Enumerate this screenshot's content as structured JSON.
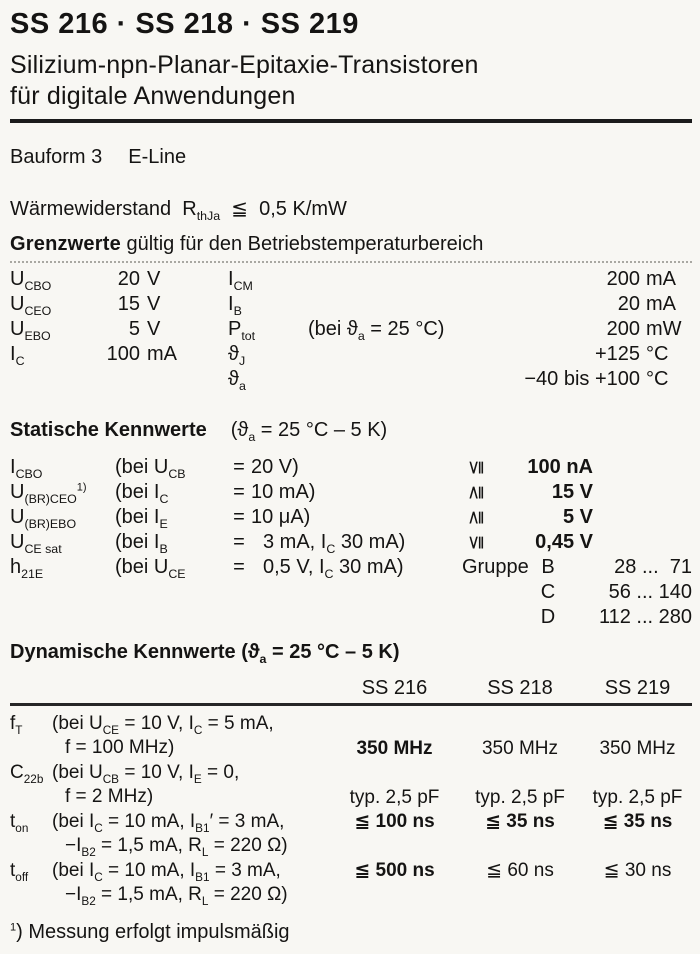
{
  "colors": {
    "paper": "#f8f7f3",
    "ink": "#151413"
  },
  "header": {
    "title": "SS 216 · SS 218 · SS 219",
    "subtitle_line1": "Silizium-npn-Planar-Epitaxie-Transistoren",
    "subtitle_line2": "für digitale Anwendungen"
  },
  "bauform": {
    "label": "Bauform 3",
    "value": "E-Line"
  },
  "thermal": {
    "rich": [
      {
        "t": "Wärmewiderstand  R"
      },
      {
        "sub": "thJa"
      },
      {
        "t": "  ≦  0,5 K/mW"
      }
    ]
  },
  "grenzwerte": {
    "heading_bold": "Grenzwerte",
    "heading_rest": " gültig für den Betriebstemperaturbereich",
    "rows": [
      {
        "sym": [
          {
            "t": "U"
          },
          {
            "sub": "CBO"
          }
        ],
        "num": "20",
        "unit": "V",
        "sym2": [
          {
            "t": "I"
          },
          {
            "sub": "CM"
          }
        ],
        "cond": [],
        "num2": "200",
        "unit2": "mA"
      },
      {
        "sym": [
          {
            "t": "U"
          },
          {
            "sub": "CEO"
          }
        ],
        "num": "15",
        "unit": "V",
        "sym2": [
          {
            "t": "I"
          },
          {
            "sub": "B"
          }
        ],
        "cond": [],
        "num2": "20",
        "unit2": "mA"
      },
      {
        "sym": [
          {
            "t": "U"
          },
          {
            "sub": "EBO"
          }
        ],
        "num": "5",
        "unit": "V",
        "sym2": [
          {
            "t": "P"
          },
          {
            "sub": "tot"
          }
        ],
        "cond": [
          {
            "t": "(bei ϑ"
          },
          {
            "sub": "a"
          },
          {
            "t": " = 25 °C)"
          }
        ],
        "num2": "200",
        "unit2": "mW"
      },
      {
        "sym": [
          {
            "t": "I"
          },
          {
            "sub": "C"
          }
        ],
        "num": "100",
        "unit": "mA",
        "sym2": [
          {
            "t": "ϑ"
          },
          {
            "sub": "J"
          }
        ],
        "cond": [],
        "num2": "+125",
        "unit2": "°C"
      },
      {
        "sym": [],
        "num": "",
        "unit": "",
        "sym2": [
          {
            "t": "ϑ"
          },
          {
            "sub": "a"
          }
        ],
        "cond": [],
        "num2": "−40 bis +100",
        "unit2": "°C"
      }
    ]
  },
  "statische": {
    "heading": "Statische Kennwerte",
    "condition": [
      {
        "t": "(ϑ"
      },
      {
        "sub": "a"
      },
      {
        "t": " = 25 °C – 5 K)"
      }
    ],
    "rows": [
      {
        "sym": [
          {
            "t": "I"
          },
          {
            "sub": "CBO"
          }
        ],
        "cond_left": [
          {
            "t": "(bei U"
          },
          {
            "sub": "CB"
          }
        ],
        "eq": "=",
        "cond_right": [
          {
            "t": "20 V)"
          }
        ],
        "rel": "≦",
        "value": "100 nA"
      },
      {
        "sym": [
          {
            "t": "U"
          },
          {
            "sub": "(BR)CEO"
          },
          {
            "sup": "1)"
          }
        ],
        "cond_left": [
          {
            "t": "(bei I"
          },
          {
            "sub": "C"
          }
        ],
        "eq": "=",
        "cond_right": [
          {
            "t": "10 mA)"
          }
        ],
        "rel": "≧",
        "value": "15 V"
      },
      {
        "sym": [
          {
            "t": "U"
          },
          {
            "sub": "(BR)EBO"
          }
        ],
        "cond_left": [
          {
            "t": "(bei I"
          },
          {
            "sub": "E"
          }
        ],
        "eq": "=",
        "cond_right": [
          {
            "t": "10 μA)"
          }
        ],
        "rel": "≧",
        "value": "5 V"
      },
      {
        "sym": [
          {
            "t": "U"
          },
          {
            "sub": "CE sat"
          }
        ],
        "cond_left": [
          {
            "t": "(bei I"
          },
          {
            "sub": "B"
          }
        ],
        "eq": "=",
        "cond_right": [
          {
            "t": "3 mA, I"
          },
          {
            "sub": "C"
          },
          {
            "t": " 30 mA)"
          }
        ],
        "rel": "≦",
        "value": "0,45 V"
      },
      {
        "sym": [
          {
            "t": "h"
          },
          {
            "sub": "21E"
          }
        ],
        "cond_left": [
          {
            "t": "(bei U"
          },
          {
            "sub": "CE"
          }
        ],
        "eq": "=",
        "cond_right": [
          {
            "t": "0,5 V, I"
          },
          {
            "sub": "C"
          },
          {
            "t": " 30 mA)"
          }
        ],
        "group_label": "Gruppe",
        "group_letter": "B",
        "range": "28 ...  71"
      }
    ],
    "extra_groups": [
      {
        "letter": "C",
        "range": "56 ... 140"
      },
      {
        "letter": "D",
        "range": "112 ... 280"
      }
    ]
  },
  "dynamische": {
    "heading": "Dynamische Kennwerte",
    "condition": [
      {
        "t": "(ϑ"
      },
      {
        "sub": "a"
      },
      {
        "t": " = 25 °C – 5 K)"
      }
    ],
    "columns": [
      "SS 216",
      "SS 218",
      "SS 219"
    ],
    "rows": [
      {
        "sym": [
          {
            "t": "f"
          },
          {
            "sub": "T"
          }
        ],
        "cond1": [
          {
            "t": "(bei U"
          },
          {
            "sub": "CE"
          },
          {
            "t": " = 10 V, I"
          },
          {
            "sub": "C"
          },
          {
            "t": " = 5 mA,"
          }
        ],
        "cond2": [
          {
            "t": "f = 100 MHz)"
          }
        ],
        "values": [
          "350 MHz",
          "350 MHz",
          "350 MHz"
        ]
      },
      {
        "sym": [
          {
            "t": "C"
          },
          {
            "sub": "22b"
          }
        ],
        "cond1": [
          {
            "t": "(bei U"
          },
          {
            "sub": "CB"
          },
          {
            "t": " = 10 V, I"
          },
          {
            "sub": "E"
          },
          {
            "t": " = 0,"
          }
        ],
        "cond2": [
          {
            "t": "f = 2 MHz)"
          }
        ],
        "values": [
          "typ. 2,5 pF",
          "typ. 2,5 pF",
          "typ. 2,5 pF"
        ]
      },
      {
        "sym": [
          {
            "t": "t"
          },
          {
            "sub": "on"
          }
        ],
        "cond1": [
          {
            "t": "(bei I"
          },
          {
            "sub": "C"
          },
          {
            "t": " = 10 mA, I"
          },
          {
            "sub": "B1"
          },
          {
            "t": "′ = 3 mA,"
          }
        ],
        "cond2": [
          {
            "t": "−I"
          },
          {
            "sub": "B2"
          },
          {
            "t": " = 1,5 mA, R"
          },
          {
            "sub": "L"
          },
          {
            "t": " = 220 Ω)"
          }
        ],
        "values": [
          "≦ 100 ns",
          "≦ 35 ns",
          "≦ 35 ns"
        ]
      },
      {
        "sym": [
          {
            "t": "t"
          },
          {
            "sub": "off"
          }
        ],
        "cond1": [
          {
            "t": "(bei I"
          },
          {
            "sub": "C"
          },
          {
            "t": " = 10 mA, I"
          },
          {
            "sub": "B1"
          },
          {
            "t": " = 3 mA,"
          }
        ],
        "cond2": [
          {
            "t": "−I"
          },
          {
            "sub": "B2"
          },
          {
            "t": " = 1,5 mA, R"
          },
          {
            "sub": "L"
          },
          {
            "t": " = 220 Ω)"
          }
        ],
        "values": [
          "≦ 500 ns",
          "≦ 60 ns",
          "≦ 30 ns"
        ]
      }
    ]
  },
  "footnote": [
    {
      "sup": "1"
    },
    {
      "t": ") Messung erfolgt impulsmäßig"
    }
  ]
}
